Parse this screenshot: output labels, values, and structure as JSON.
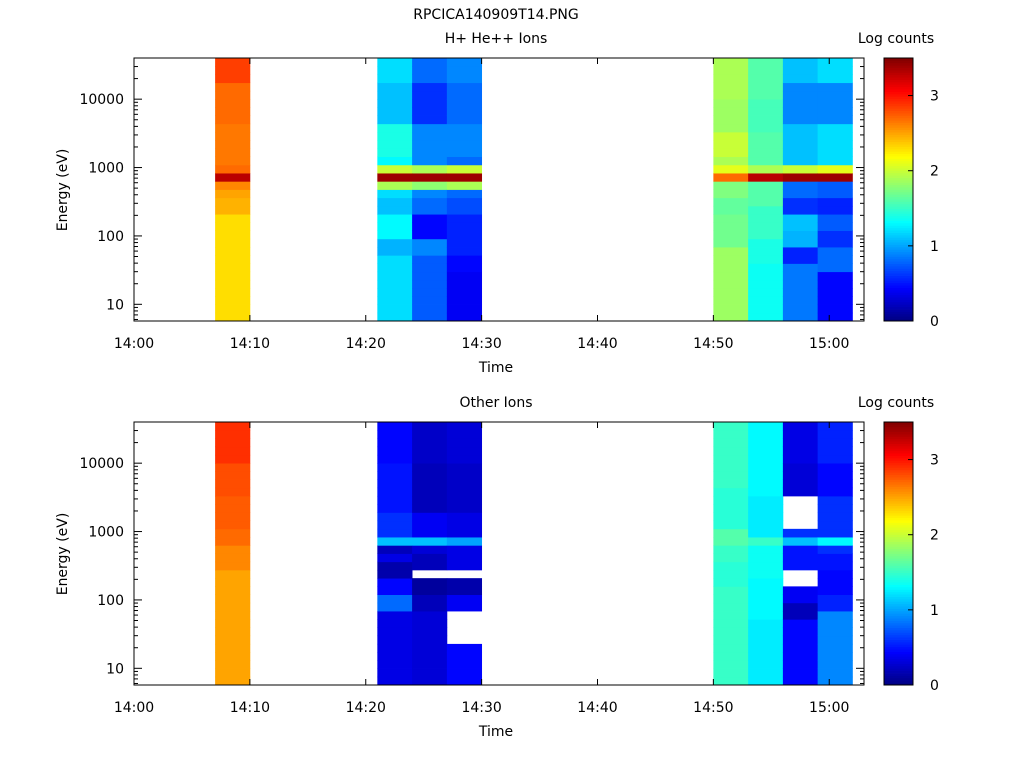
{
  "page": {
    "title": "RPCICA140909T14.PNG"
  },
  "chart_data": [
    {
      "type": "heatmap",
      "title": "H+ He++ Ions",
      "xlabel": "Time",
      "ylabel": "Energy (eV)",
      "colorbar_label": "Log counts",
      "yscale": "log",
      "xlim": [
        "14:00",
        "15:03"
      ],
      "ylim": [
        5.7,
        40000
      ],
      "xticks": [
        "14:00",
        "14:10",
        "14:20",
        "14:30",
        "14:40",
        "14:50",
        "15:00"
      ],
      "yticks": [
        "10",
        "100",
        "1000",
        "10000"
      ],
      "clim": [
        0,
        3.5
      ],
      "cticks": [
        "0",
        "1",
        "2",
        "3"
      ],
      "columns": [
        {
          "t_start": "14:07",
          "t_end": "14:10",
          "profile": [
            [
              6,
              2.3
            ],
            [
              25,
              2.3
            ],
            [
              150,
              2.3
            ],
            [
              200,
              2.45
            ],
            [
              300,
              2.45
            ],
            [
              400,
              2.5
            ],
            [
              500,
              2.6
            ],
            [
              600,
              3.3
            ],
            [
              750,
              2.7
            ],
            [
              1000,
              2.65
            ],
            [
              1500,
              2.65
            ],
            [
              5000,
              2.7
            ],
            [
              20000,
              2.85
            ],
            [
              40000,
              2.9
            ]
          ]
        },
        {
          "t_start": "14:21",
          "t_end": "14:24",
          "profile": [
            [
              6,
              1.2
            ],
            [
              30,
              1.2
            ],
            [
              50,
              1.05
            ],
            [
              100,
              1.3
            ],
            [
              200,
              1.1
            ],
            [
              400,
              1.2
            ],
            [
              500,
              1.9
            ],
            [
              600,
              3.4
            ],
            [
              760,
              2.0
            ],
            [
              1000,
              1.3
            ],
            [
              1300,
              2.1
            ],
            [
              1600,
              1.4
            ],
            [
              4000,
              1.1
            ],
            [
              20000,
              1.2
            ],
            [
              40000,
              1.4
            ]
          ]
        },
        {
          "t_start": "14:24",
          "t_end": "14:27",
          "profile": [
            [
              6,
              0.75
            ],
            [
              30,
              0.75
            ],
            [
              55,
              0.9
            ],
            [
              100,
              0.45
            ],
            [
              200,
              0.8
            ],
            [
              400,
              0.9
            ],
            [
              500,
              1.8
            ],
            [
              600,
              3.4
            ],
            [
              760,
              1.9
            ],
            [
              1000,
              0.9
            ],
            [
              1300,
              1.9
            ],
            [
              1600,
              0.9
            ],
            [
              4000,
              0.6
            ],
            [
              20000,
              0.8
            ],
            [
              40000,
              0.9
            ]
          ]
        },
        {
          "t_start": "14:27",
          "t_end": "14:30",
          "profile": [
            [
              6,
              0.4
            ],
            [
              30,
              0.45
            ],
            [
              55,
              0.55
            ],
            [
              100,
              0.55
            ],
            [
              200,
              0.7
            ],
            [
              400,
              0.8
            ],
            [
              500,
              1.9
            ],
            [
              600,
              3.4
            ],
            [
              760,
              2.0
            ],
            [
              1000,
              0.8
            ],
            [
              1300,
              1.8
            ],
            [
              1600,
              0.9
            ],
            [
              4000,
              0.8
            ],
            [
              20000,
              0.9
            ],
            [
              40000,
              1.1
            ]
          ]
        },
        {
          "t_start": "14:50",
          "t_end": "14:53",
          "profile": [
            [
              6,
              1.85
            ],
            [
              25,
              1.85
            ],
            [
              70,
              1.7
            ],
            [
              200,
              1.65
            ],
            [
              400,
              1.75
            ],
            [
              600,
              2.7
            ],
            [
              760,
              2.1
            ],
            [
              1000,
              1.9
            ],
            [
              1400,
              2.0
            ],
            [
              3000,
              1.85
            ],
            [
              10000,
              1.9
            ],
            [
              40000,
              2.05
            ]
          ]
        },
        {
          "t_start": "14:53",
          "t_end": "14:56",
          "profile": [
            [
              6,
              1.35
            ],
            [
              40,
              1.4
            ],
            [
              100,
              1.5
            ],
            [
              300,
              1.6
            ],
            [
              600,
              3.3
            ],
            [
              760,
              1.9
            ],
            [
              1000,
              1.6
            ],
            [
              3000,
              1.55
            ],
            [
              10000,
              1.6
            ],
            [
              40000,
              1.65
            ]
          ]
        },
        {
          "t_start": "14:56",
          "t_end": "14:59",
          "profile": [
            [
              6,
              0.85
            ],
            [
              25,
              0.85
            ],
            [
              40,
              0.55
            ],
            [
              70,
              1.05
            ],
            [
              130,
              1.1
            ],
            [
              200,
              0.6
            ],
            [
              400,
              0.8
            ],
            [
              600,
              3.4
            ],
            [
              760,
              2.0
            ],
            [
              1000,
              1.1
            ],
            [
              1300,
              2.0
            ],
            [
              1600,
              1.1
            ],
            [
              4000,
              0.9
            ],
            [
              20000,
              1.1
            ],
            [
              40000,
              1.3
            ]
          ]
        },
        {
          "t_start": "14:59",
          "t_end": "15:02",
          "profile": [
            [
              6,
              0.45
            ],
            [
              30,
              0.8
            ],
            [
              70,
              0.6
            ],
            [
              130,
              0.75
            ],
            [
              200,
              0.55
            ],
            [
              400,
              0.75
            ],
            [
              600,
              3.4
            ],
            [
              760,
              2.1
            ],
            [
              1000,
              1.2
            ],
            [
              1300,
              2.05
            ],
            [
              1600,
              1.2
            ],
            [
              4000,
              0.9
            ],
            [
              20000,
              1.2
            ],
            [
              40000,
              1.4
            ]
          ]
        }
      ]
    },
    {
      "type": "heatmap",
      "title": "Other Ions",
      "xlabel": "Time",
      "ylabel": "Energy (eV)",
      "colorbar_label": "Log counts",
      "yscale": "log",
      "xlim": [
        "14:00",
        "15:03"
      ],
      "ylim": [
        5.7,
        40000
      ],
      "xticks": [
        "14:00",
        "14:10",
        "14:20",
        "14:30",
        "14:40",
        "14:50",
        "15:00"
      ],
      "yticks": [
        "10",
        "100",
        "1000",
        "10000"
      ],
      "clim": [
        0,
        3.5
      ],
      "cticks": [
        "0",
        "1",
        "2",
        "3"
      ],
      "columns": [
        {
          "t_start": "14:07",
          "t_end": "14:10",
          "profile": [
            [
              6,
              2.5
            ],
            [
              150,
              2.5
            ],
            [
              300,
              2.6
            ],
            [
              600,
              2.7
            ],
            [
              1000,
              2.75
            ],
            [
              3000,
              2.8
            ],
            [
              10000,
              2.9
            ],
            [
              40000,
              2.95
            ]
          ]
        },
        {
          "t_start": "14:21",
          "t_end": "14:24",
          "profile": [
            [
              6,
              0.35
            ],
            [
              25,
              0.35
            ],
            [
              60,
              0.8
            ],
            [
              120,
              0.45
            ],
            [
              200,
              0.15
            ],
            [
              350,
              0.35
            ],
            [
              500,
              0.2
            ],
            [
              600,
              1.1
            ],
            [
              750,
              1.5
            ],
            [
              850,
              0.6
            ],
            [
              2000,
              0.5
            ],
            [
              10000,
              0.45
            ],
            [
              40000,
              0.5
            ]
          ]
        },
        {
          "t_start": "14:24",
          "t_end": "14:27",
          "profile": [
            [
              6,
              0.3
            ],
            [
              25,
              0.3
            ],
            [
              60,
              0.2
            ],
            [
              120,
              0.1
            ],
            [
              200,
              "gap"
            ],
            [
              250,
              0.2
            ],
            [
              500,
              0.3
            ],
            [
              600,
              1.1
            ],
            [
              750,
              1.4
            ],
            [
              850,
              0.4
            ],
            [
              2000,
              0.2
            ],
            [
              10000,
              0.25
            ],
            [
              40000,
              0.3
            ]
          ]
        },
        {
          "t_start": "14:27",
          "t_end": "14:30",
          "profile": [
            [
              6,
              0.45
            ],
            [
              25,
              "gap"
            ],
            [
              60,
              0.4
            ],
            [
              120,
              0.15
            ],
            [
              200,
              "gap"
            ],
            [
              300,
              0.35
            ],
            [
              500,
              0.35
            ],
            [
              600,
              1.0
            ],
            [
              750,
              1.3
            ],
            [
              850,
              0.35
            ],
            [
              2000,
              0.25
            ],
            [
              10000,
              0.3
            ],
            [
              40000,
              0.35
            ]
          ]
        },
        {
          "t_start": "14:50",
          "t_end": "14:53",
          "profile": [
            [
              6,
              1.5
            ],
            [
              50,
              1.5
            ],
            [
              150,
              1.45
            ],
            [
              400,
              1.5
            ],
            [
              700,
              1.6
            ],
            [
              1000,
              1.45
            ],
            [
              5000,
              1.5
            ],
            [
              40000,
              1.55
            ]
          ]
        },
        {
          "t_start": "14:53",
          "t_end": "14:56",
          "profile": [
            [
              6,
              1.25
            ],
            [
              50,
              1.3
            ],
            [
              200,
              1.35
            ],
            [
              600,
              1.5
            ],
            [
              800,
              1.25
            ],
            [
              3000,
              1.3
            ],
            [
              40000,
              1.4
            ]
          ]
        },
        {
          "t_start": "14:56",
          "t_end": "14:59",
          "profile": [
            [
              6,
              0.45
            ],
            [
              50,
              0.2
            ],
            [
              90,
              0.4
            ],
            [
              150,
              "gap"
            ],
            [
              300,
              0.5
            ],
            [
              600,
              1.1
            ],
            [
              800,
              0.6
            ],
            [
              1000,
              "gap"
            ],
            [
              3000,
              0.3
            ],
            [
              10000,
              0.35
            ],
            [
              40000,
              0.4
            ]
          ]
        },
        {
          "t_start": "14:59",
          "t_end": "15:02",
          "profile": [
            [
              6,
              0.9
            ],
            [
              25,
              0.9
            ],
            [
              60,
              0.55
            ],
            [
              130,
              0.45
            ],
            [
              250,
              0.5
            ],
            [
              500,
              0.6
            ],
            [
              700,
              1.3
            ],
            [
              800,
              0.6
            ],
            [
              3000,
              0.45
            ],
            [
              10000,
              0.55
            ],
            [
              40000,
              0.6
            ]
          ]
        }
      ]
    }
  ]
}
